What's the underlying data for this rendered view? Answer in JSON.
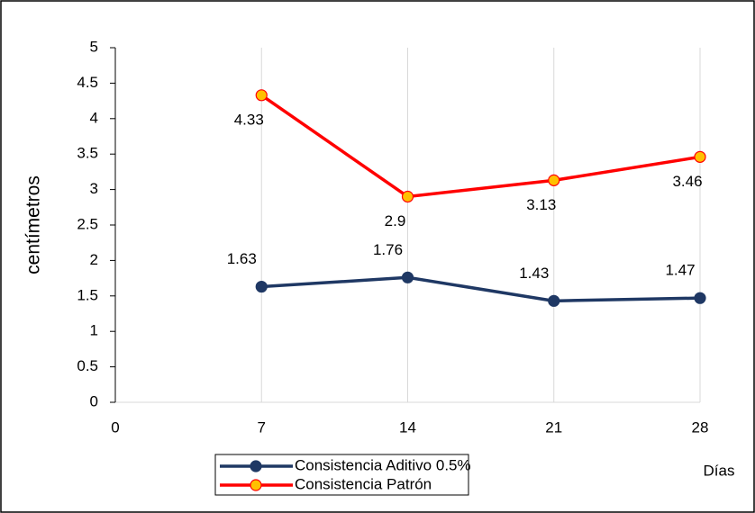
{
  "chart_data": {
    "type": "line",
    "x": [
      7,
      14,
      21,
      28
    ],
    "xlim": [
      0,
      28
    ],
    "xticks": [
      0,
      7,
      14,
      21,
      28
    ],
    "ylim": [
      0,
      5
    ],
    "yticks": [
      0,
      0.5,
      1,
      1.5,
      2,
      2.5,
      3,
      3.5,
      4,
      4.5,
      5
    ],
    "xlabel": "Días",
    "ylabel": "centímetros",
    "grid": "x",
    "series": [
      {
        "name": "Consistencia Aditivo 0.5%",
        "color": "#1f3864",
        "marker_color": "#1f3864",
        "values": [
          1.63,
          1.76,
          1.43,
          1.47
        ]
      },
      {
        "name": "Consistencia Patrón",
        "color": "#ff0000",
        "marker_color": "#ffc000",
        "values": [
          4.33,
          2.9,
          3.13,
          3.46
        ]
      }
    ]
  }
}
